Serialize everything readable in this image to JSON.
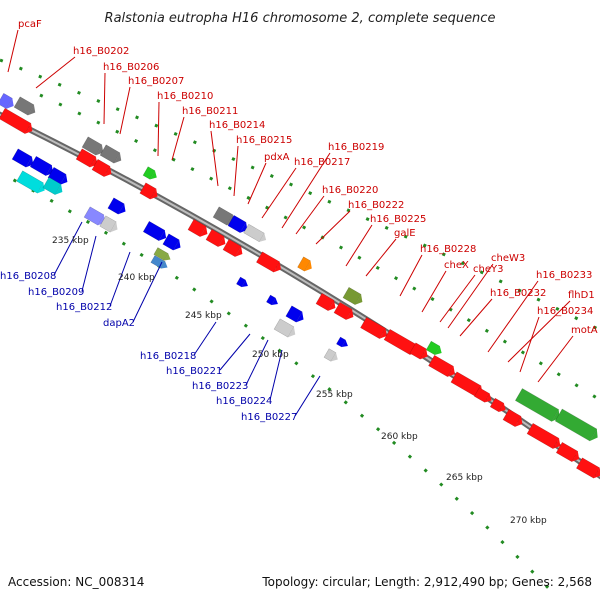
{
  "title": "Ralstonia eutropha H16 chromosome 2, complete sequence",
  "footer": {
    "accession": "Accession: NC_008314",
    "topology": "Topology: circular; Length: 2,912,490 bp; Genes: 2,568"
  },
  "colors": {
    "forward": "#ff0000",
    "reverse": "#0000ee",
    "backbone": "#888888",
    "ticks": "#228b22",
    "label_fwd": "#cc0000",
    "label_rev": "#0000aa"
  },
  "scale_labels": [
    "235 kbp",
    "240 kbp",
    "245 kbp",
    "250 kbp",
    "255 kbp",
    "260 kbp",
    "265 kbp",
    "270 kbp"
  ],
  "forward_labels": [
    "pcaF",
    "h16_B0202",
    "h16_B0206",
    "h16_B0207",
    "h16_B0210",
    "h16_B0211",
    "h16_B0214",
    "h16_B0215",
    "pdxA",
    "h16_B0217",
    "h16_B0219",
    "h16_B0220",
    "h16_B0222",
    "h16_B0225",
    "galE",
    "h16_B0228",
    "cheX",
    "cheY3",
    "cheW3",
    "h16_B0232",
    "h16_B0233",
    "flhD1",
    "h16_B0234",
    "motA"
  ],
  "reverse_labels": [
    "h16_B0208",
    "h16_B0209",
    "h16_B0212",
    "dapA2",
    "h16_B0218",
    "h16_B0221",
    "h16_B0223",
    "h16_B0224",
    "h16_B0227"
  ]
}
